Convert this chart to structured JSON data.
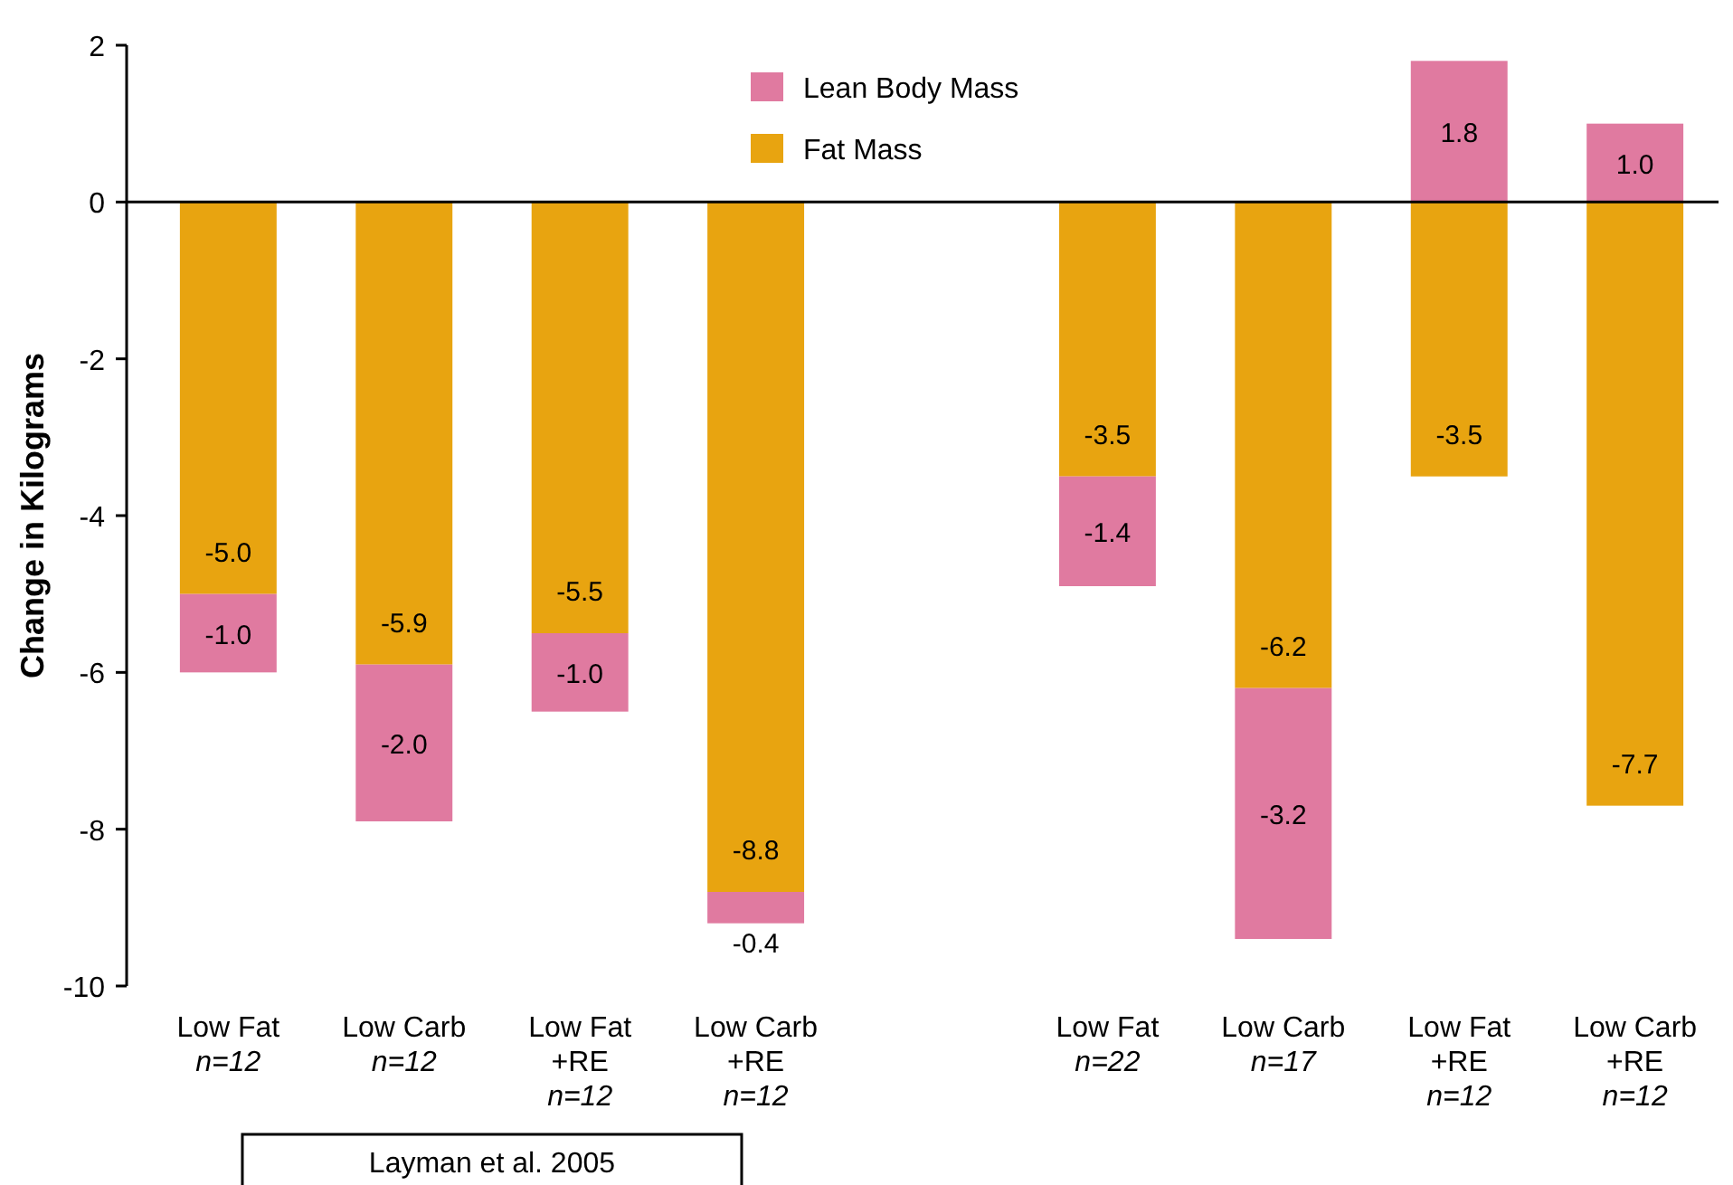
{
  "chart_data": {
    "type": "bar",
    "stacked": true,
    "ylabel": "Change in Kilograms",
    "categories": [
      "Low Fat\nn=12",
      "Low Carb\nn=12",
      "Low Fat\n+RE\nn=12",
      "Low Carb\n+RE\nn=12",
      null,
      "Low Fat\nn=22",
      "Low Carb\nn=17",
      "Low Fat\n+RE\nn=12",
      "Low Carb\n+RE\nn=12"
    ],
    "series": [
      {
        "name": "Fat Mass",
        "color": "#e8a410",
        "values": [
          -5.0,
          -5.9,
          -5.5,
          -8.8,
          null,
          -3.5,
          -6.2,
          -3.5,
          -7.7
        ],
        "value_labels": [
          "-5.0",
          "-5.9",
          "-5.5",
          "-8.8",
          null,
          "-3.5",
          "-6.2",
          "-3.5",
          "-7.7"
        ]
      },
      {
        "name": "Lean Body Mass",
        "color": "#e07aa0",
        "values": [
          -1.0,
          -2.0,
          -1.0,
          -0.4,
          null,
          -1.4,
          -3.2,
          1.8,
          1.0
        ],
        "value_labels": [
          "-1.0",
          "-2.0",
          "-1.0",
          "-0.4",
          null,
          "-1.4",
          "-3.2",
          "1.8",
          "1.0"
        ]
      }
    ],
    "ylim": [
      -10,
      2
    ],
    "yticks": [
      -10,
      -8,
      -6,
      -4,
      -2,
      0,
      2
    ],
    "legend": "top",
    "annotations": [
      "Layman et al. 2005"
    ]
  }
}
